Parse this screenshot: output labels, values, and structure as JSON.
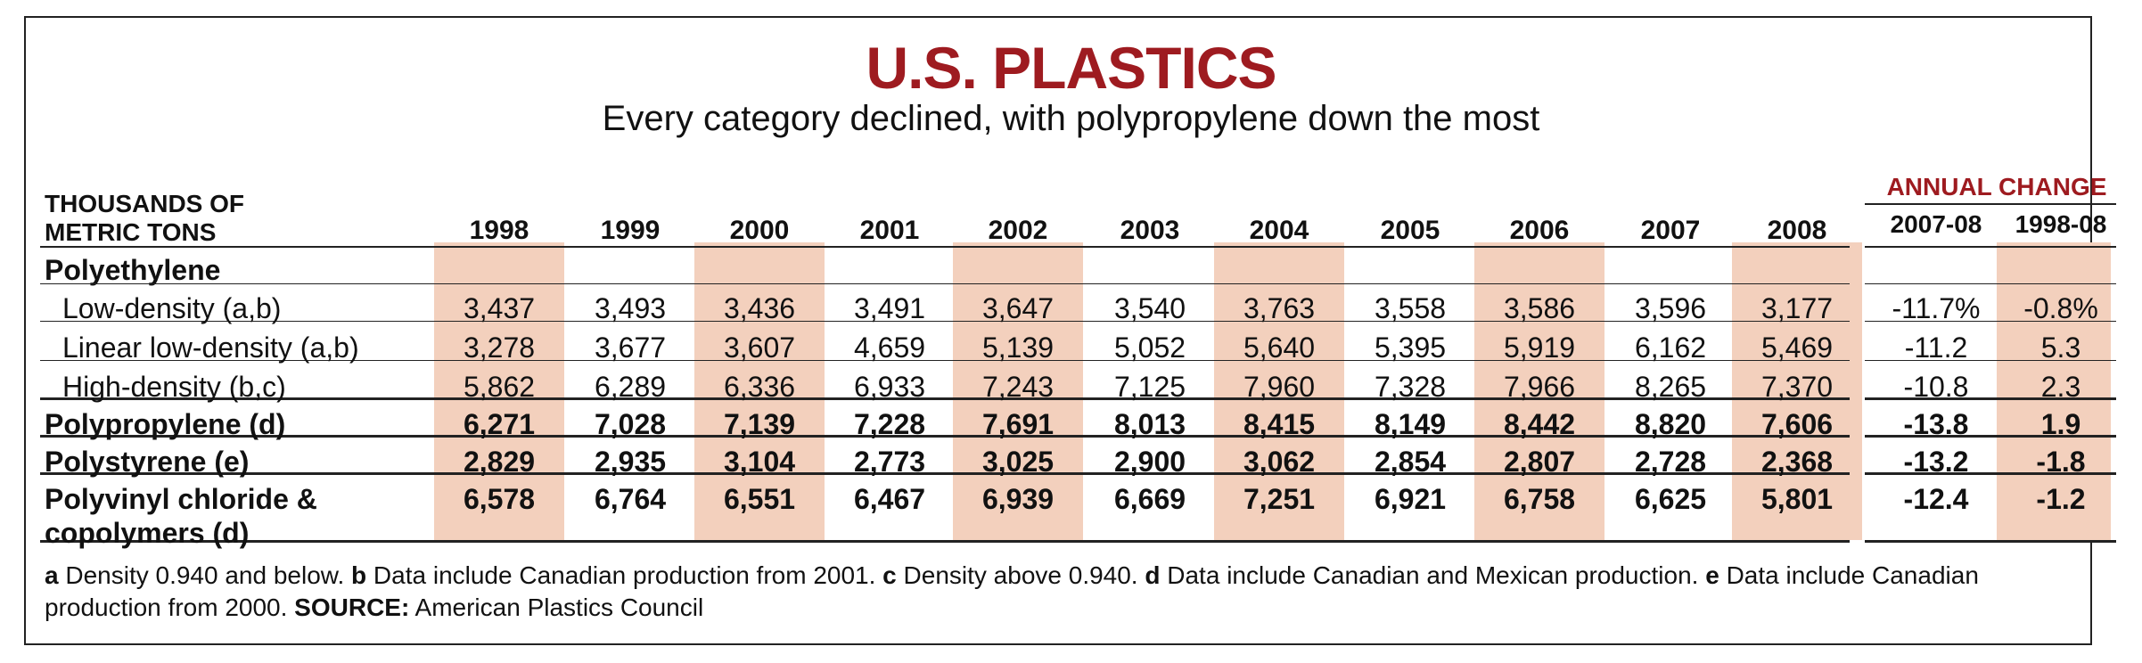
{
  "title": "U.S. PLASTICS",
  "subtitle": "Every category declined, with polypropylene down the most",
  "unit_label_line1": "THOUSANDS OF",
  "unit_label_line2": "METRIC TONS",
  "annual_change_label": "ANNUAL CHANGE",
  "shade_color": "#f3d0bd",
  "accent_color": "#9e1b20",
  "chart_data": {
    "type": "table",
    "title": "U.S. PLASTICS",
    "subtitle": "Every category declined, with polypropylene down the most",
    "years": [
      "1998",
      "1999",
      "2000",
      "2001",
      "2002",
      "2003",
      "2004",
      "2005",
      "2006",
      "2007",
      "2008"
    ],
    "change_columns": [
      "2007-08",
      "1998-08"
    ],
    "group_heading": "Polyethylene",
    "rows": [
      {
        "label": "Low-density (a,b)",
        "indent": true,
        "bold": false,
        "values": [
          "3,437",
          "3,493",
          "3,436",
          "3,491",
          "3,647",
          "3,540",
          "3,763",
          "3,558",
          "3,586",
          "3,596",
          "3,177"
        ],
        "changes": [
          "-11.7%",
          "-0.8%"
        ]
      },
      {
        "label": "Linear low-density (a,b)",
        "indent": true,
        "bold": false,
        "values": [
          "3,278",
          "3,677",
          "3,607",
          "4,659",
          "5,139",
          "5,052",
          "5,640",
          "5,395",
          "5,919",
          "6,162",
          "5,469"
        ],
        "changes": [
          "-11.2",
          "5.3"
        ]
      },
      {
        "label": "High-density (b,c)",
        "indent": true,
        "bold": false,
        "values": [
          "5,862",
          "6,289",
          "6,336",
          "6,933",
          "7,243",
          "7,125",
          "7,960",
          "7,328",
          "7,966",
          "8,265",
          "7,370"
        ],
        "changes": [
          "-10.8",
          "2.3"
        ]
      },
      {
        "label": "Polypropylene (d)",
        "indent": false,
        "bold": true,
        "values": [
          "6,271",
          "7,028",
          "7,139",
          "7,228",
          "7,691",
          "8,013",
          "8,415",
          "8,149",
          "8,442",
          "8,820",
          "7,606"
        ],
        "changes": [
          "-13.8",
          "1.9"
        ]
      },
      {
        "label": "Polystyrene (e)",
        "indent": false,
        "bold": true,
        "values": [
          "2,829",
          "2,935",
          "3,104",
          "2,773",
          "3,025",
          "2,900",
          "3,062",
          "2,854",
          "2,807",
          "2,728",
          "2,368"
        ],
        "changes": [
          "-13.2",
          "-1.8"
        ]
      },
      {
        "label": "Polyvinyl chloride &",
        "label2": "copolymers (d)",
        "indent": false,
        "bold": true,
        "values": [
          "6,578",
          "6,764",
          "6,551",
          "6,467",
          "6,939",
          "6,669",
          "7,251",
          "6,921",
          "6,758",
          "6,625",
          "5,801"
        ],
        "changes": [
          "-12.4",
          "-1.2"
        ]
      }
    ]
  },
  "footnote": {
    "a_key": "a",
    "a_text": " Density 0.940 and below. ",
    "b_key": "b",
    "b_text": " Data include Canadian production from 2001. ",
    "c_key": "c",
    "c_text": " Density above 0.940. ",
    "d_key": "d",
    "d_text": " Data include Canadian and Mexican production. ",
    "e_key": "e",
    "e_text": " Data include Canadian production from 2000. ",
    "source_key": "SOURCE:",
    "source_text": " American Plastics Council"
  }
}
